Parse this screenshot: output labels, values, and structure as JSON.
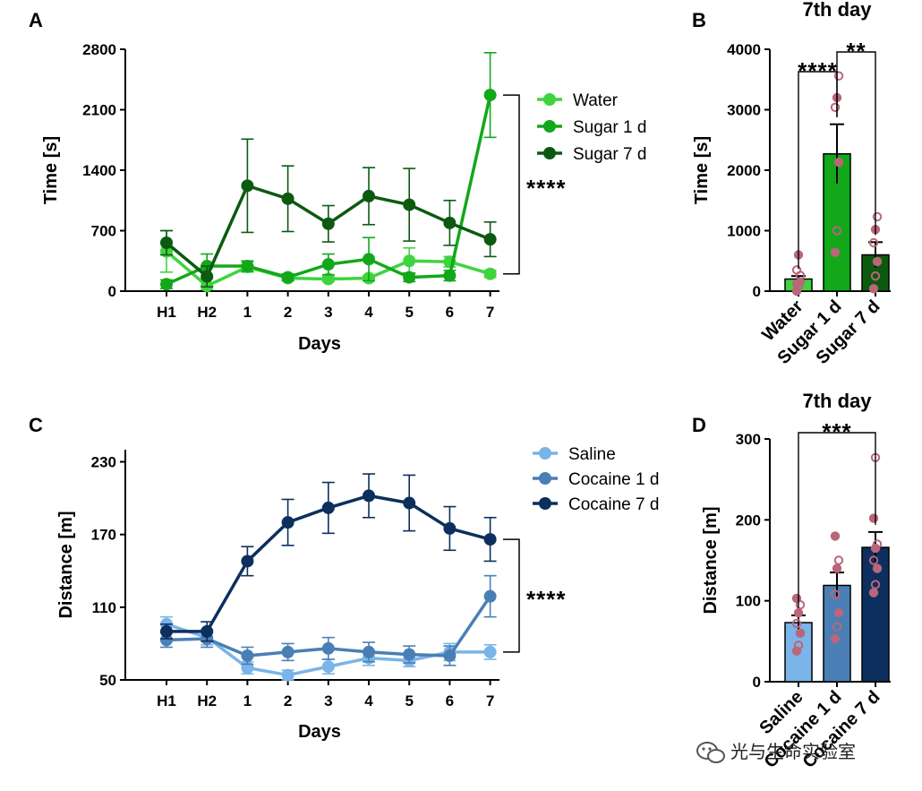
{
  "watermark": "光与生命实验室",
  "panels": {
    "A": {
      "label": "A"
    },
    "B": {
      "label": "B"
    },
    "C": {
      "label": "C"
    },
    "D": {
      "label": "D"
    }
  },
  "colors": {
    "water": "#3fd43f",
    "sugar1": "#12a81a",
    "sugar7": "#0b5a10",
    "saline": "#7ab4e8",
    "cocaine1": "#4a7fb5",
    "cocaine7": "#0c2f5e",
    "dot": "#b9667a"
  },
  "chart_data": [
    {
      "id": "A",
      "type": "line",
      "title": "",
      "xlabel": "Days",
      "ylabel": "Time [s]",
      "categories": [
        "H1",
        "H2",
        "1",
        "2",
        "3",
        "4",
        "5",
        "6",
        "7"
      ],
      "ylim": [
        0,
        2800
      ],
      "yticks": [
        0,
        700,
        1400,
        2100,
        2800
      ],
      "legend_position": "right",
      "series": [
        {
          "name": "Water",
          "color": "#3fd43f",
          "values": [
            460,
            60,
            280,
            150,
            140,
            150,
            350,
            340,
            200
          ],
          "errors": [
            240,
            40,
            60,
            30,
            30,
            30,
            150,
            60,
            40
          ]
        },
        {
          "name": "Sugar 1 d",
          "color": "#12a81a",
          "values": [
            80,
            290,
            290,
            160,
            310,
            370,
            160,
            180,
            2270
          ],
          "errors": [
            50,
            140,
            60,
            40,
            120,
            250,
            50,
            60,
            490
          ]
        },
        {
          "name": "Sugar 7 d",
          "color": "#0b5a10",
          "values": [
            560,
            170,
            1220,
            1070,
            780,
            1100,
            1000,
            790,
            600
          ],
          "errors": [
            140,
            120,
            540,
            380,
            210,
            330,
            420,
            260,
            200
          ]
        }
      ],
      "significance": "****"
    },
    {
      "id": "B",
      "type": "bar",
      "title": "7th day",
      "xlabel": "",
      "ylabel": "Time [s]",
      "categories": [
        "Water",
        "Sugar 1 d",
        "Sugar 7 d"
      ],
      "ylim": [
        0,
        4000
      ],
      "yticks": [
        0,
        1000,
        2000,
        3000,
        4000
      ],
      "values": [
        200,
        2270,
        600
      ],
      "errors": [
        50,
        490,
        210
      ],
      "colors": [
        "#3fd43f",
        "#12a81a",
        "#0b5a10"
      ],
      "points": [
        [
          0,
          80,
          150,
          350,
          600,
          260,
          120
        ],
        [
          640,
          1000,
          2130,
          3040,
          3200,
          3560
        ],
        [
          40,
          250,
          490,
          800,
          1020,
          1230
        ]
      ],
      "brackets": [
        {
          "from": 0,
          "to": 1,
          "label": "****"
        },
        {
          "from": 1,
          "to": 2,
          "label": "**"
        }
      ]
    },
    {
      "id": "C",
      "type": "line",
      "title": "",
      "xlabel": "Days",
      "ylabel": "Distance [m]",
      "categories": [
        "H1",
        "H2",
        "1",
        "2",
        "3",
        "4",
        "5",
        "6",
        "7"
      ],
      "ylim": [
        50,
        240
      ],
      "yticks": [
        50,
        110,
        170,
        230
      ],
      "legend_position": "right",
      "series": [
        {
          "name": "Saline",
          "color": "#7ab4e8",
          "values": [
            96,
            85,
            60,
            54,
            61,
            68,
            66,
            73,
            73
          ],
          "errors": [
            6,
            6,
            5,
            4,
            6,
            6,
            5,
            7,
            6
          ]
        },
        {
          "name": "Cocaine 1 d",
          "color": "#4a7fb5",
          "values": [
            83,
            84,
            70,
            73,
            76,
            73,
            71,
            70,
            119
          ],
          "errors": [
            6,
            7,
            7,
            7,
            9,
            8,
            7,
            8,
            17
          ]
        },
        {
          "name": "Cocaine 7 d",
          "color": "#0c2f5e",
          "values": [
            90,
            90,
            148,
            180,
            192,
            202,
            196,
            175,
            166
          ],
          "errors": [
            6,
            8,
            12,
            19,
            21,
            18,
            23,
            18,
            18
          ]
        }
      ],
      "significance": "****"
    },
    {
      "id": "D",
      "type": "bar",
      "title": "7th day",
      "xlabel": "",
      "ylabel": "Distance [m]",
      "categories": [
        "Saline",
        "Cocaine 1 d",
        "Cocaine 7 d"
      ],
      "ylim": [
        0,
        300
      ],
      "yticks": [
        0,
        100,
        200,
        300
      ],
      "values": [
        73,
        119,
        166
      ],
      "errors": [
        9,
        16,
        19
      ],
      "colors": [
        "#7ab4e8",
        "#4a7fb5",
        "#0c2f5e"
      ],
      "points": [
        [
          38,
          45,
          60,
          72,
          85,
          95,
          103
        ],
        [
          53,
          68,
          85,
          108,
          140,
          150,
          180
        ],
        [
          110,
          120,
          140,
          150,
          165,
          170,
          202,
          277
        ]
      ],
      "brackets": [
        {
          "from": 0,
          "to": 2,
          "label": "***"
        }
      ]
    }
  ]
}
